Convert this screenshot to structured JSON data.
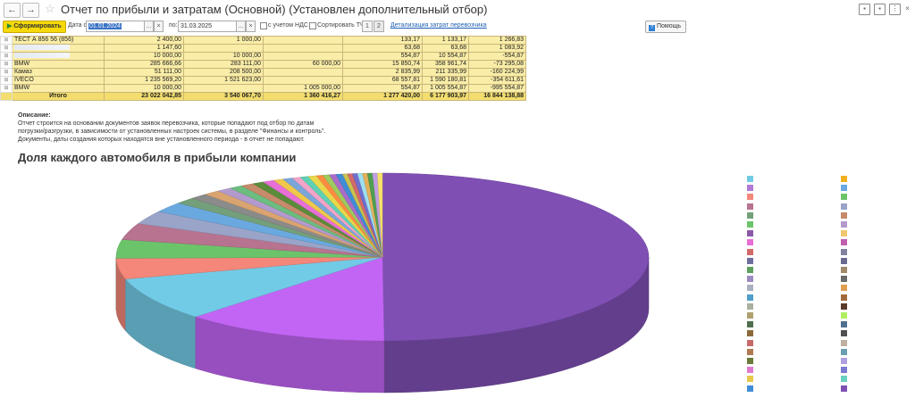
{
  "window": {
    "title": "Отчет по прибыли и затратам (Основной) (Установлен дополнительный отбор)",
    "back": "←",
    "forward": "→",
    "star": "☆"
  },
  "toolbar": {
    "generate_label": "Сформировать",
    "date_from_label": "Дата с:",
    "date_from_value": "01.01.2024",
    "date_to_label": "по:",
    "date_to_value": "31.03.2025",
    "vat_label": "с учетом НДС",
    "sort_label": "Сортировать ТЧ",
    "page1": "1",
    "page2": "2",
    "detail_link": "Детализация затрат перевозчика",
    "help_label": "Помощь",
    "more": "…",
    "clear": "×"
  },
  "table": {
    "rows": [
      {
        "name": "ТЕСТ А 856 56 (856)",
        "c1": "2 400,00",
        "c2": "1 000,00",
        "c3": "",
        "c4": "133,17",
        "c5": "1 133,17",
        "c6": "1 266,83"
      },
      {
        "name": "",
        "c1": "1 147,60",
        "c2": "",
        "c3": "",
        "c4": "63,68",
        "c5": "63,68",
        "c6": "1 083,92"
      },
      {
        "name": "",
        "c1": "10 000,00",
        "c2": "10 000,00",
        "c3": "",
        "c4": "554,87",
        "c5": "10 554,87",
        "c6": "-554,87"
      },
      {
        "name": "BMW",
        "c1": "285 666,66",
        "c2": "283 111,00",
        "c3": "60 000,00",
        "c4": "15 850,74",
        "c5": "358 961,74",
        "c6": "-73 295,08"
      },
      {
        "name": "Камаз",
        "c1": "51 111,00",
        "c2": "208 500,00",
        "c3": "",
        "c4": "2 835,99",
        "c5": "211 335,99",
        "c6": "-160 224,99"
      },
      {
        "name": "IVECO",
        "c1": "1 235 569,20",
        "c2": "1 521 623,00",
        "c3": "",
        "c4": "68 557,81",
        "c5": "1 590 180,81",
        "c6": "-354 611,61"
      },
      {
        "name": "BMW",
        "c1": "10 000,00",
        "c2": "",
        "c3": "1 005 000,00",
        "c4": "554,87",
        "c5": "1 005 554,87",
        "c6": "-995 554,87"
      }
    ],
    "total": {
      "name": "Итого",
      "c1": "23 022 042,85",
      "c2": "3 540 067,70",
      "c3": "1 360 416,27",
      "c4": "1 277 420,00",
      "c5": "6 177 903,97",
      "c6": "16 844 138,88"
    },
    "expand_icon": "⊞"
  },
  "description": {
    "heading": "Описание:",
    "line1": "Отчет строится на основании документов заявок перевозчика, которые попадают под отбор по датам",
    "line2": "погрузки/разгрузки, в зависимости от установленных настроек системы, в разделе \"Финансы и контроль\".",
    "line3": "Документы, даты создания которых находятся вне установленного периода - в отчет не попадают."
  },
  "chart_data": {
    "type": "pie",
    "title": "Доля каждого автомобиля в прибыли компании",
    "style": "3d",
    "slices": [
      {
        "value": 50.0,
        "color": "#7f4fb4"
      },
      {
        "value": 12.5,
        "color": "#c265f5"
      },
      {
        "value": 8.4,
        "color": "#72cbe6"
      },
      {
        "value": 4.0,
        "color": "#f4877a"
      },
      {
        "value": 3.6,
        "color": "#6cc46a"
      },
      {
        "value": 3.2,
        "color": "#b7738f"
      },
      {
        "value": 2.6,
        "color": "#9aa3c8"
      },
      {
        "value": 2.0,
        "color": "#6aa9e0"
      },
      {
        "value": 1.2,
        "color": "#73a07a"
      },
      {
        "value": 1.1,
        "color": "#8b8b8b"
      },
      {
        "value": 1.0,
        "color": "#d9a470"
      },
      {
        "value": 0.9,
        "color": "#b39acd"
      },
      {
        "value": 0.8,
        "color": "#6bbd80"
      },
      {
        "value": 0.8,
        "color": "#c68b6a"
      },
      {
        "value": 0.7,
        "color": "#5b8c3a"
      },
      {
        "value": 0.7,
        "color": "#e76fd6"
      },
      {
        "value": 0.6,
        "color": "#f0c84a"
      },
      {
        "value": 0.6,
        "color": "#7aa6d9"
      },
      {
        "value": 0.5,
        "color": "#f4a4c8"
      },
      {
        "value": 0.5,
        "color": "#5fd0b4"
      },
      {
        "value": 0.5,
        "color": "#e8d84b"
      },
      {
        "value": 0.4,
        "color": "#ff8c40"
      },
      {
        "value": 0.4,
        "color": "#9ecb5e"
      },
      {
        "value": 0.4,
        "color": "#aa6cc7"
      },
      {
        "value": 0.4,
        "color": "#3f8dd6"
      },
      {
        "value": 0.3,
        "color": "#c9c24f"
      },
      {
        "value": 0.3,
        "color": "#d36a6a"
      },
      {
        "value": 0.3,
        "color": "#6f6fcf"
      },
      {
        "value": 0.3,
        "color": "#9fe0f0"
      },
      {
        "value": 0.3,
        "color": "#e2b05b"
      },
      {
        "value": 0.3,
        "color": "#4f9f4f"
      },
      {
        "value": 0.3,
        "color": "#c0a0e0"
      },
      {
        "value": 0.3,
        "color": "#f7e36a"
      }
    ],
    "legend": {
      "placement": "right",
      "left_colors": [
        "#72cbe6",
        "#b079d6",
        "#f4877a",
        "#b7738f",
        "#73a07a",
        "#6cc46a",
        "#8a5aa8",
        "#e76fd6",
        "#d36a6a",
        "#6f6f9f",
        "#5fa05f",
        "#9b8bc0",
        "#aab0c0",
        "#4f9fc9",
        "#a9b0a0",
        "#b0a070",
        "#4f6f4f",
        "#8a6a3a",
        "#c66a6a",
        "#b07a50",
        "#6a7a3a",
        "#e07ad0",
        "#e8c84b",
        "#3f8dd6"
      ],
      "right_colors": [
        "#f0b020",
        "#6aa9e0",
        "#6cc46a",
        "#9aa3c8",
        "#c68b6a",
        "#b39acd",
        "#f0c870",
        "#c060b0",
        "#8080a0",
        "#6a6a90",
        "#a08a6a",
        "#6a6a6a",
        "#e0a050",
        "#a06a3a",
        "#5a3a2a",
        "#b0f060",
        "#4f6f8f",
        "#505050",
        "#c0b0a0",
        "#6a9fb0",
        "#b0a0e0",
        "#7a7ad0",
        "#6ad0c0",
        "#7f4fb4"
      ]
    }
  }
}
